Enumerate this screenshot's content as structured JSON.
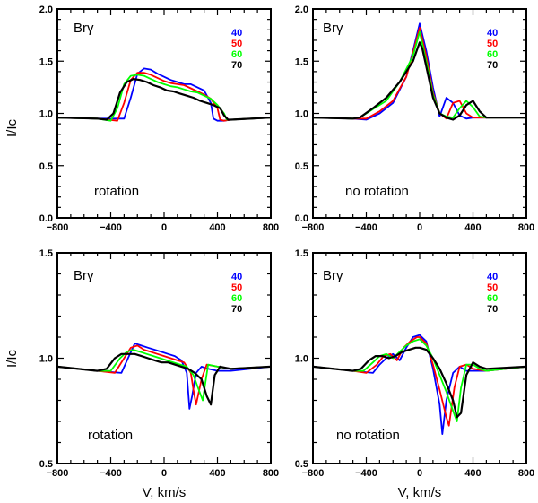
{
  "chart_data": [
    {
      "type": "line",
      "line_label": "Brγ",
      "note": "rotation",
      "xlabel": "",
      "ylabel": "I/Ic",
      "xlim": [
        -800,
        800
      ],
      "ylim": [
        0.0,
        2.0
      ],
      "x_ticks": [
        "−800",
        "−400",
        "0",
        "400",
        "800"
      ],
      "y_ticks": [
        "0.0",
        "0.5",
        "1.0",
        "1.5",
        "2.0"
      ],
      "legend_position": "top-right",
      "series": [
        {
          "name": "40",
          "color": "#0000ff",
          "x": [
            -800,
            -500,
            -300,
            -250,
            -200,
            -150,
            -100,
            -50,
            0,
            50,
            100,
            150,
            200,
            250,
            300,
            350,
            370,
            400,
            450,
            500,
            800
          ],
          "y": [
            0.96,
            0.95,
            0.95,
            1.15,
            1.38,
            1.43,
            1.42,
            1.38,
            1.35,
            1.32,
            1.3,
            1.28,
            1.28,
            1.25,
            1.22,
            1.1,
            0.95,
            0.93,
            0.93,
            0.94,
            0.96
          ]
        },
        {
          "name": "50",
          "color": "#ff0000",
          "x": [
            -800,
            -500,
            -350,
            -300,
            -250,
            -200,
            -150,
            -100,
            -50,
            0,
            50,
            100,
            150,
            200,
            250,
            300,
            350,
            400,
            420,
            450,
            500,
            800
          ],
          "y": [
            0.96,
            0.95,
            0.93,
            1.1,
            1.32,
            1.39,
            1.39,
            1.37,
            1.34,
            1.31,
            1.29,
            1.28,
            1.27,
            1.24,
            1.21,
            1.18,
            1.14,
            1.05,
            0.94,
            0.93,
            0.94,
            0.96
          ]
        },
        {
          "name": "60",
          "color": "#00ff00",
          "x": [
            -800,
            -500,
            -400,
            -350,
            -300,
            -250,
            -200,
            -150,
            -100,
            -50,
            0,
            50,
            100,
            150,
            200,
            250,
            300,
            350,
            400,
            450,
            470,
            500,
            800
          ],
          "y": [
            0.96,
            0.95,
            0.93,
            1.05,
            1.28,
            1.36,
            1.37,
            1.36,
            1.33,
            1.3,
            1.28,
            1.26,
            1.25,
            1.23,
            1.21,
            1.2,
            1.17,
            1.14,
            1.08,
            1.0,
            0.94,
            0.94,
            0.96
          ]
        },
        {
          "name": "70",
          "color": "#000000",
          "x": [
            -800,
            -500,
            -430,
            -380,
            -330,
            -280,
            -230,
            -180,
            -130,
            -80,
            -30,
            20,
            70,
            120,
            170,
            220,
            270,
            320,
            370,
            420,
            450,
            480,
            500,
            800
          ],
          "y": [
            0.96,
            0.95,
            0.94,
            1.0,
            1.2,
            1.3,
            1.33,
            1.32,
            1.3,
            1.27,
            1.25,
            1.22,
            1.21,
            1.19,
            1.17,
            1.15,
            1.12,
            1.1,
            1.08,
            1.05,
            0.98,
            0.94,
            0.94,
            0.96
          ]
        }
      ]
    },
    {
      "type": "line",
      "line_label": "Brγ",
      "note": "no rotation",
      "xlabel": "",
      "ylabel": "",
      "xlim": [
        -800,
        800
      ],
      "ylim": [
        0.0,
        2.0
      ],
      "x_ticks": [
        "−800",
        "−400",
        "0",
        "400",
        "800"
      ],
      "y_ticks": [
        "0.0",
        "0.5",
        "1.0",
        "1.5",
        "2.0"
      ],
      "legend_position": "top-right",
      "series": [
        {
          "name": "40",
          "color": "#0000ff",
          "x": [
            -800,
            -500,
            -400,
            -300,
            -200,
            -100,
            -50,
            0,
            50,
            100,
            150,
            200,
            250,
            300,
            350,
            400,
            500,
            800
          ],
          "y": [
            0.96,
            0.95,
            0.94,
            1.0,
            1.1,
            1.35,
            1.6,
            1.86,
            1.6,
            1.25,
            0.97,
            1.15,
            1.1,
            0.98,
            0.95,
            0.96,
            0.96,
            0.96
          ]
        },
        {
          "name": "50",
          "color": "#ff0000",
          "x": [
            -800,
            -500,
            -400,
            -300,
            -200,
            -100,
            -50,
            0,
            50,
            100,
            150,
            200,
            250,
            300,
            350,
            400,
            500,
            800
          ],
          "y": [
            0.96,
            0.95,
            0.95,
            1.02,
            1.12,
            1.35,
            1.58,
            1.82,
            1.55,
            1.2,
            1.0,
            0.95,
            1.1,
            1.12,
            1.0,
            0.96,
            0.96,
            0.96
          ]
        },
        {
          "name": "60",
          "color": "#00ff00",
          "x": [
            -800,
            -500,
            -450,
            -350,
            -250,
            -150,
            -50,
            0,
            50,
            100,
            150,
            200,
            250,
            300,
            350,
            400,
            450,
            500,
            800
          ],
          "y": [
            0.96,
            0.95,
            0.96,
            1.04,
            1.12,
            1.3,
            1.55,
            1.78,
            1.5,
            1.18,
            1.0,
            0.97,
            0.96,
            1.05,
            1.12,
            1.06,
            0.97,
            0.96,
            0.96
          ]
        },
        {
          "name": "70",
          "color": "#000000",
          "x": [
            -800,
            -500,
            -450,
            -350,
            -250,
            -150,
            -50,
            0,
            20,
            50,
            100,
            150,
            200,
            250,
            300,
            350,
            400,
            450,
            500,
            800
          ],
          "y": [
            0.96,
            0.95,
            0.96,
            1.05,
            1.15,
            1.3,
            1.5,
            1.68,
            1.62,
            1.45,
            1.15,
            1.0,
            0.96,
            0.94,
            0.98,
            1.08,
            1.12,
            1.02,
            0.96,
            0.96
          ]
        }
      ]
    },
    {
      "type": "line",
      "line_label": "Brγ",
      "note": "rotation",
      "xlabel": "V, km/s",
      "ylabel": "I/Ic",
      "xlim": [
        -800,
        800
      ],
      "ylim": [
        0.5,
        1.5
      ],
      "x_ticks": [
        "−800",
        "−400",
        "0",
        "400",
        "800"
      ],
      "y_ticks": [
        "0.5",
        "1.0",
        "1.5"
      ],
      "legend_position": "top-right",
      "series": [
        {
          "name": "40",
          "color": "#0000ff",
          "x": [
            -800,
            -500,
            -320,
            -270,
            -220,
            -170,
            -120,
            -70,
            -20,
            30,
            80,
            130,
            170,
            190,
            210,
            240,
            280,
            330,
            400,
            500,
            800
          ],
          "y": [
            0.96,
            0.94,
            0.93,
            1.0,
            1.07,
            1.06,
            1.05,
            1.04,
            1.03,
            1.02,
            1.01,
            0.99,
            0.93,
            0.76,
            0.82,
            0.93,
            0.96,
            0.95,
            0.94,
            0.94,
            0.96
          ]
        },
        {
          "name": "50",
          "color": "#ff0000",
          "x": [
            -800,
            -500,
            -370,
            -300,
            -250,
            -200,
            -150,
            -100,
            -50,
            0,
            50,
            100,
            150,
            200,
            220,
            240,
            280,
            320,
            400,
            500,
            800
          ],
          "y": [
            0.96,
            0.94,
            0.93,
            1.0,
            1.05,
            1.06,
            1.04,
            1.03,
            1.02,
            1.01,
            1.0,
            0.99,
            0.98,
            0.93,
            0.85,
            0.78,
            0.9,
            0.97,
            0.96,
            0.95,
            0.96
          ]
        },
        {
          "name": "60",
          "color": "#00ff00",
          "x": [
            -800,
            -500,
            -400,
            -330,
            -280,
            -230,
            -180,
            -130,
            -80,
            -30,
            20,
            70,
            120,
            170,
            220,
            260,
            290,
            330,
            400,
            500,
            800
          ],
          "y": [
            0.96,
            0.94,
            0.94,
            1.0,
            1.03,
            1.04,
            1.03,
            1.02,
            1.01,
            1.0,
            0.99,
            0.98,
            0.97,
            0.96,
            0.92,
            0.85,
            0.8,
            0.97,
            0.96,
            0.95,
            0.96
          ]
        },
        {
          "name": "70",
          "color": "#000000",
          "x": [
            -800,
            -500,
            -430,
            -370,
            -320,
            -270,
            -220,
            -170,
            -120,
            -70,
            -20,
            30,
            80,
            130,
            180,
            230,
            280,
            320,
            350,
            380,
            420,
            500,
            800
          ],
          "y": [
            0.96,
            0.94,
            0.95,
            1.0,
            1.02,
            1.02,
            1.02,
            1.01,
            1.0,
            0.99,
            0.98,
            0.98,
            0.97,
            0.96,
            0.95,
            0.93,
            0.9,
            0.82,
            0.78,
            0.92,
            0.96,
            0.95,
            0.96
          ]
        }
      ]
    },
    {
      "type": "line",
      "line_label": "Brγ",
      "note": "no rotation",
      "xlabel": "V, km/s",
      "ylabel": "",
      "xlim": [
        -800,
        800
      ],
      "ylim": [
        0.5,
        1.5
      ],
      "x_ticks": [
        "−800",
        "−400",
        "0",
        "400",
        "800"
      ],
      "y_ticks": [
        "0.5",
        "1.0",
        "1.5"
      ],
      "legend_position": "top-right",
      "series": [
        {
          "name": "40",
          "color": "#0000ff",
          "x": [
            -800,
            -500,
            -350,
            -300,
            -250,
            -200,
            -150,
            -100,
            -50,
            0,
            50,
            100,
            150,
            170,
            200,
            250,
            300,
            350,
            400,
            500,
            800
          ],
          "y": [
            0.96,
            0.94,
            0.93,
            0.97,
            1.0,
            1.02,
            0.99,
            1.05,
            1.1,
            1.11,
            1.08,
            0.95,
            0.78,
            0.64,
            0.8,
            0.93,
            0.96,
            0.94,
            0.94,
            0.94,
            0.96
          ]
        },
        {
          "name": "50",
          "color": "#ff0000",
          "x": [
            -800,
            -500,
            -400,
            -320,
            -270,
            -220,
            -170,
            -120,
            -70,
            -20,
            0,
            50,
            100,
            150,
            200,
            220,
            260,
            300,
            350,
            400,
            500,
            800
          ],
          "y": [
            0.96,
            0.94,
            0.93,
            0.97,
            1.01,
            1.02,
            0.99,
            1.05,
            1.08,
            1.1,
            1.1,
            1.07,
            0.97,
            0.85,
            0.72,
            0.68,
            0.86,
            0.96,
            0.97,
            0.95,
            0.94,
            0.96
          ]
        },
        {
          "name": "60",
          "color": "#00ff00",
          "x": [
            -800,
            -500,
            -420,
            -350,
            -300,
            -250,
            -200,
            -150,
            -100,
            -50,
            0,
            50,
            100,
            150,
            200,
            250,
            280,
            310,
            350,
            400,
            450,
            500,
            800
          ],
          "y": [
            0.96,
            0.94,
            0.94,
            0.98,
            1.01,
            1.02,
            1.0,
            1.03,
            1.06,
            1.08,
            1.09,
            1.06,
            1.0,
            0.92,
            0.84,
            0.75,
            0.7,
            0.86,
            0.97,
            0.97,
            0.95,
            0.94,
            0.96
          ]
        },
        {
          "name": "70",
          "color": "#000000",
          "x": [
            -800,
            -500,
            -440,
            -380,
            -330,
            -280,
            -230,
            -180,
            -130,
            -80,
            -30,
            0,
            50,
            100,
            150,
            200,
            250,
            280,
            310,
            350,
            400,
            450,
            500,
            800
          ],
          "y": [
            0.96,
            0.94,
            0.95,
            0.99,
            1.01,
            1.01,
            1.0,
            1.01,
            1.03,
            1.04,
            1.05,
            1.05,
            1.04,
            1.0,
            0.95,
            0.88,
            0.8,
            0.72,
            0.74,
            0.92,
            0.98,
            0.96,
            0.95,
            0.96
          ]
        }
      ]
    }
  ]
}
